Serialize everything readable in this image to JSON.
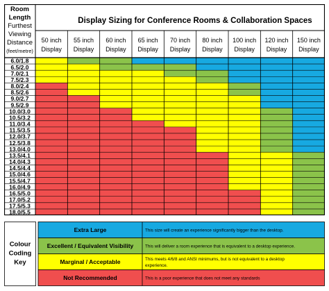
{
  "title": "Display Sizing for Conference Rooms & Collaboration Spaces",
  "row_header": [
    "Room",
    "Length",
    "Furthest",
    "Viewing",
    "Distance",
    "(feet/metre)"
  ],
  "columns": [
    [
      "50 inch",
      "Display"
    ],
    [
      "55 inch",
      "Display"
    ],
    [
      "60 inch",
      "Display"
    ],
    [
      "65 inch",
      "Display"
    ],
    [
      "70 inch",
      "Display"
    ],
    [
      "80 inch",
      "Display"
    ],
    [
      "100 inch",
      "Display"
    ],
    [
      "120 inch",
      "Display"
    ],
    [
      "150 inch",
      "Display"
    ]
  ],
  "rows": [
    "6.0/1.8",
    "6.5/2.0",
    "7.0/2.1",
    "7.5/2.3",
    "8.0/2.4",
    "8.5/2.6",
    "9.0/2.7",
    "9.5/2.9",
    "10.0/3.0",
    "10.5/3.2",
    "11.0/3.4",
    "11.5/3.5",
    "12.0/3.7",
    "12.5/3.8",
    "13.0/4.0",
    "13.5/4.1",
    "14.0/4.3",
    "14.5/4.4",
    "15.0/4.6",
    "15.5/4.7",
    "16.0/4.9",
    "16.5/5.0",
    "17.0/5.2",
    "17.5/5.3",
    "18.0/5.5"
  ],
  "colors": {
    "blue": "#17a9e1",
    "green": "#8bc34a",
    "yellow": "#ffff00",
    "red": "#f04e4e",
    "border": "#000000"
  },
  "chart_data": {
    "type": "table",
    "title": "Display Sizing for Conference Rooms & Collaboration Spaces",
    "categories": [
      "50 inch Display",
      "55 inch Display",
      "60 inch Display",
      "65 inch Display",
      "70 inch Display",
      "80 inch Display",
      "100 inch Display",
      "120 inch Display",
      "150 inch Display"
    ],
    "rows": [
      "6.0/1.8",
      "6.5/2.0",
      "7.0/2.1",
      "7.5/2.3",
      "8.0/2.4",
      "8.5/2.6",
      "9.0/2.7",
      "9.5/2.9",
      "10.0/3.0",
      "10.5/3.2",
      "11.0/3.4",
      "11.5/3.5",
      "12.0/3.7",
      "12.5/3.8",
      "13.0/4.0",
      "13.5/4.1",
      "14.0/4.3",
      "14.5/4.4",
      "15.0/4.6",
      "15.5/4.7",
      "16.0/4.9",
      "16.5/5.0",
      "17.0/5.2",
      "17.5/5.3",
      "18.0/5.5"
    ],
    "cells": [
      "YGGBBBBBB",
      "YYGGGBBBB",
      "YYYYGGBBB",
      "YYYYYGBBB",
      "RYYYYYGBB",
      "RYYYYYGBB",
      "RRYYYYYBB",
      "RRYYYYYBB",
      "RRRYYYYGB",
      "RRRYYYYGB",
      "RRRRYYYGB",
      "RRRRRYYGB",
      "RRRRRYYGB",
      "RRRRRYYGB",
      "RRRRRYYGB",
      "RRRRRRYYG",
      "RRRRRRYYG",
      "RRRRRRYYG",
      "RRRRRRYYG",
      "RRRRRRYYG",
      "RRRRRRYYG",
      "RRRRRRRYG",
      "RRRRRRRYG",
      "RRRRRRRYG",
      "RRRRRRRYG"
    ],
    "key": {
      "B": "Extra Large",
      "G": "Excellent / Equivalent Visibility",
      "Y": "Marginal / Acceptable",
      "R": "Not Recommended"
    }
  },
  "legend": {
    "title_lines": [
      "Colour",
      "Coding",
      "Key"
    ],
    "items": [
      {
        "code": "B",
        "label": "Extra Large",
        "description": [
          "This size will create an experience significantly bigger than the desktop."
        ]
      },
      {
        "code": "G",
        "label": "Excellent / Equivalent Visibility",
        "description": [
          "This will deliver a room experience that is equivalent to a desktop experience."
        ]
      },
      {
        "code": "Y",
        "label": "Marginal / Acceptable",
        "description": [
          "This meets 4/6/8 and ANSI minimums, but is not equivalent to a desktop",
          "experience."
        ]
      },
      {
        "code": "R",
        "label": "Not Recommended",
        "description": [
          "This is a poor experience that does not meet any standards"
        ]
      }
    ]
  }
}
